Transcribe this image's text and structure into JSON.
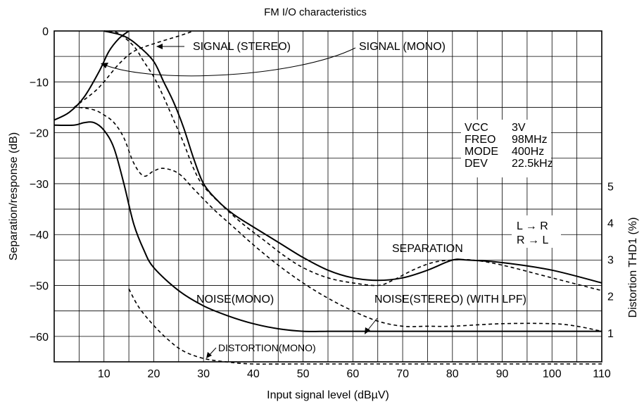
{
  "chart_data": {
    "type": "line",
    "title": "FM I/O characteristics",
    "xlabel": "Input signal level (dBµV)",
    "ylabel": "Separation/response (dB)",
    "y2label": "Distortion THD1 (%)",
    "xlim": [
      0,
      110
    ],
    "ylim": [
      -65,
      0
    ],
    "y2lim": [
      0,
      6
    ],
    "x_ticks": [
      "10",
      "20",
      "30",
      "40",
      "50",
      "60",
      "70",
      "80",
      "90",
      "100",
      "110"
    ],
    "y_ticks": [
      "0",
      "−10",
      "−20",
      "−30",
      "−40",
      "−50",
      "−60"
    ],
    "y2_ticks": [
      "1",
      "2",
      "3",
      "4",
      "5"
    ],
    "grid": true,
    "conditions": [
      {
        "label": "VCC",
        "value": "3V"
      },
      {
        "label": "FREO",
        "value": "98MHz"
      },
      {
        "label": "MODE",
        "value": "400Hz"
      },
      {
        "label": "DEV",
        "value": "22.5kHz"
      }
    ],
    "legend_separation": [
      "L → R",
      "R → L"
    ],
    "annotations": {
      "signal_stereo": "SIGNAL (STEREO)",
      "signal_mono": "SIGNAL (MONO)",
      "separation": "SEPARATION",
      "noise_mono": "NOISE(MONO)",
      "noise_stereo": "NOISE(STEREO) (WITH   LPF)",
      "distortion_mono": "DISTORTION(MONO)"
    },
    "series": [
      {
        "name": "SIGNAL (MONO)",
        "style": "solid",
        "axis": "left",
        "points": [
          [
            0,
            -17.5
          ],
          [
            3,
            -16
          ],
          [
            6,
            -13
          ],
          [
            9,
            -8
          ],
          [
            11,
            -4
          ],
          [
            13,
            -1.5
          ],
          [
            15,
            0
          ]
        ]
      },
      {
        "name": "SIGNAL (STEREO)",
        "style": "dashed",
        "axis": "left",
        "points": [
          [
            4,
            -15
          ],
          [
            8,
            -12
          ],
          [
            10,
            -10
          ],
          [
            13,
            -6.5
          ],
          [
            16,
            -4
          ],
          [
            20,
            -2.5
          ],
          [
            25,
            -1
          ],
          [
            28,
            0
          ]
        ]
      },
      {
        "style": "solid",
        "axis": "left",
        "points": [
          [
            10,
            0
          ],
          [
            14,
            -1
          ],
          [
            17,
            -3
          ],
          [
            20,
            -6
          ],
          [
            22,
            -10
          ],
          [
            24,
            -14
          ],
          [
            26,
            -19
          ],
          [
            28,
            -25
          ],
          [
            30,
            -30
          ],
          [
            33,
            -33.5
          ],
          [
            36,
            -36
          ],
          [
            40,
            -38.5
          ],
          [
            45,
            -41.5
          ],
          [
            50,
            -44.5
          ],
          [
            55,
            -47
          ],
          [
            60,
            -48.5
          ],
          [
            65,
            -49
          ],
          [
            70,
            -48.5
          ],
          [
            75,
            -47
          ],
          [
            80,
            -45
          ],
          [
            83,
            -45
          ],
          [
            90,
            -45.5
          ],
          [
            100,
            -47
          ],
          [
            110,
            -49.5
          ]
        ]
      },
      {
        "style": "dashed",
        "axis": "left",
        "points": [
          [
            11,
            0
          ],
          [
            13,
            -0.5
          ],
          [
            16,
            -3
          ],
          [
            18,
            -6
          ],
          [
            20,
            -9
          ],
          [
            22,
            -13
          ],
          [
            24,
            -17.5
          ],
          [
            26,
            -22
          ],
          [
            28,
            -27
          ],
          [
            30,
            -30.5
          ],
          [
            34,
            -34.5
          ],
          [
            38,
            -38
          ],
          [
            42,
            -41
          ],
          [
            46,
            -44
          ],
          [
            50,
            -46.5
          ],
          [
            55,
            -48.5
          ],
          [
            60,
            -49.5
          ],
          [
            65,
            -50
          ],
          [
            68,
            -49
          ],
          [
            72,
            -47
          ],
          [
            76,
            -45.5
          ],
          [
            80,
            -45
          ],
          [
            84,
            -45
          ],
          [
            90,
            -46
          ],
          [
            100,
            -48.5
          ],
          [
            110,
            -51
          ]
        ]
      },
      {
        "name": "NOISE(MONO)",
        "style": "solid",
        "axis": "left",
        "points": [
          [
            0,
            -18.5
          ],
          [
            4,
            -18.5
          ],
          [
            6,
            -18
          ],
          [
            8,
            -18
          ],
          [
            10,
            -19.5
          ],
          [
            12,
            -23
          ],
          [
            14,
            -30
          ],
          [
            16,
            -38
          ],
          [
            18,
            -43
          ],
          [
            20,
            -46.5
          ],
          [
            25,
            -51
          ],
          [
            30,
            -54
          ],
          [
            35,
            -56
          ],
          [
            40,
            -57.5
          ],
          [
            45,
            -58.5
          ],
          [
            50,
            -59
          ],
          [
            55,
            -59
          ],
          [
            60,
            -59
          ],
          [
            110,
            -59
          ]
        ]
      },
      {
        "name": "NOISE(STEREO) (WITH LPF)",
        "style": "dashed",
        "axis": "left",
        "points": [
          [
            5,
            -15
          ],
          [
            8,
            -15.5
          ],
          [
            10,
            -16.5
          ],
          [
            12,
            -18
          ],
          [
            14,
            -21
          ],
          [
            16,
            -26
          ],
          [
            18,
            -28.5
          ],
          [
            20,
            -27.5
          ],
          [
            22,
            -27
          ],
          [
            25,
            -28
          ],
          [
            28,
            -31
          ],
          [
            32,
            -35
          ],
          [
            36,
            -38.5
          ],
          [
            40,
            -42
          ],
          [
            45,
            -46
          ],
          [
            50,
            -49.5
          ],
          [
            55,
            -52.5
          ],
          [
            60,
            -55
          ],
          [
            65,
            -57
          ],
          [
            70,
            -58
          ],
          [
            75,
            -58
          ],
          [
            80,
            -58
          ],
          [
            90,
            -57.5
          ],
          [
            100,
            -57.5
          ],
          [
            105,
            -58
          ],
          [
            110,
            -59
          ]
        ]
      },
      {
        "name": "DISTORTION(MONO)",
        "style": "dashed",
        "axis": "right",
        "points": [
          [
            15,
            2.2
          ],
          [
            17,
            1.7
          ],
          [
            20,
            1.2
          ],
          [
            23,
            0.8
          ],
          [
            26,
            0.5
          ],
          [
            30,
            0.3
          ],
          [
            35,
            0.2
          ],
          [
            40,
            0.15
          ],
          [
            50,
            0.15
          ],
          [
            110,
            0.15
          ]
        ]
      }
    ]
  }
}
